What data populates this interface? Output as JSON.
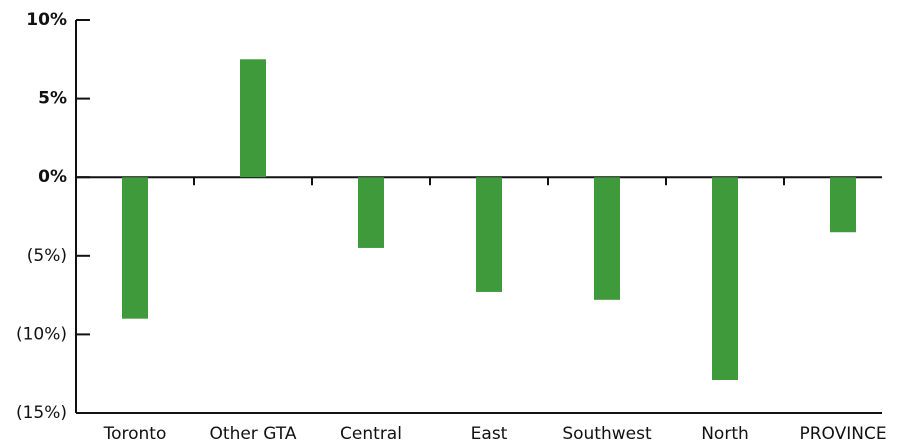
{
  "chart_data": {
    "type": "bar",
    "categories": [
      "Toronto",
      "Other GTA",
      "Central",
      "East",
      "Southwest",
      "North",
      "PROVINCE"
    ],
    "values": [
      -9.0,
      7.5,
      -4.5,
      -7.3,
      -7.8,
      -12.9,
      -3.5
    ],
    "color": "#3f9a3c",
    "ylim": [
      -15,
      10
    ],
    "yticks": [
      {
        "value": 10,
        "label": "10%"
      },
      {
        "value": 5,
        "label": "5%"
      },
      {
        "value": 0,
        "label": "0%"
      },
      {
        "value": -5,
        "label": "(5%)"
      },
      {
        "value": -10,
        "label": "(10%)"
      },
      {
        "value": -15,
        "label": "(15%)"
      }
    ],
    "grid": false
  }
}
